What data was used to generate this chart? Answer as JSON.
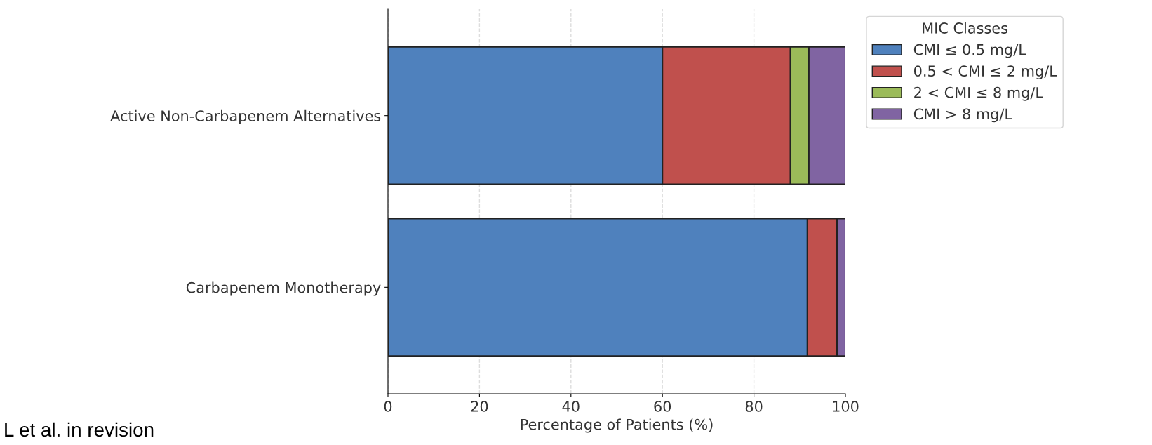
{
  "chart_data": {
    "type": "bar",
    "orientation": "horizontal",
    "stacked": true,
    "categories": [
      "Active Non-Carbapenem Alternatives",
      "Carbapenem Monotherapy"
    ],
    "series": [
      {
        "name": "CMI ≤ 0.5 mg/L",
        "color": "#4f81bd",
        "values": [
          60,
          91.7
        ]
      },
      {
        "name": "0.5 < CMI ≤ 2 mg/L",
        "color": "#c0504d",
        "values": [
          28,
          6.5
        ]
      },
      {
        "name": "2 < CMI ≤ 8 mg/L",
        "color": "#9bbb59",
        "values": [
          4,
          0
        ]
      },
      {
        "name": "CMI > 8 mg/L",
        "color": "#8064a2",
        "values": [
          8,
          1.8
        ]
      }
    ],
    "xlabel": "Percentage of Patients (%)",
    "legend_title": "MIC Classes",
    "legend": "top right",
    "xlim": [
      0,
      100
    ],
    "xticks": [
      0,
      20,
      40,
      60,
      80,
      100
    ],
    "grid": true,
    "annotations": [
      "L et al. in revision"
    ]
  }
}
